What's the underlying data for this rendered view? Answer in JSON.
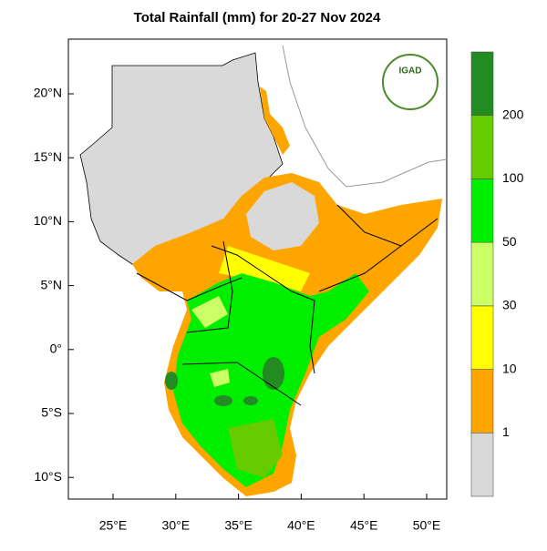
{
  "title": "Total Rainfall (mm) for 20-27 Nov 2024",
  "logo": "IGAD",
  "lat_ticks": [
    "20°N",
    "15°N",
    "10°N",
    "5°N",
    "0°",
    "5°S",
    "10°S"
  ],
  "lon_ticks": [
    "25°E",
    "30°E",
    "35°E",
    "40°E",
    "45°E",
    "50°E"
  ],
  "legend": {
    "labels": [
      "1",
      "10",
      "30",
      "50",
      "100",
      "200"
    ],
    "colors": [
      "#d9d9d9",
      "#ffa500",
      "#ffff00",
      "#ccff66",
      "#00ee00",
      "#66cc00",
      "#228b22"
    ]
  }
}
